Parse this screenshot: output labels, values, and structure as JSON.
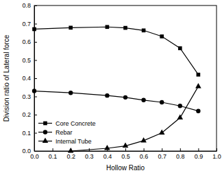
{
  "chart_data": {
    "type": "line",
    "x_label": "Hollow Ratio",
    "y_label": "Division ratio of Lateral force",
    "x": [
      0,
      0.2,
      0.4,
      0.5,
      0.6,
      0.7,
      0.8,
      0.9
    ],
    "series": [
      {
        "name": "Core Concrete",
        "color": "#000000",
        "marker": "square",
        "values": [
          0.67,
          0.678,
          0.682,
          0.677,
          0.663,
          0.63,
          0.565,
          0.42
        ]
      },
      {
        "name": "Rebar",
        "color": "#000000",
        "marker": "circle",
        "values": [
          0.33,
          0.32,
          0.305,
          0.295,
          0.28,
          0.268,
          0.248,
          0.22
        ]
      },
      {
        "name": "Internal Tube",
        "color": "#000000",
        "marker": "triangle",
        "values": [
          null,
          0.0,
          0.015,
          0.028,
          0.057,
          0.1,
          0.183,
          0.355
        ]
      }
    ],
    "xlim": [
      0,
      1.0
    ],
    "xticks": [
      {
        "value": 0,
        "label": "0.0"
      },
      0.1,
      0.2,
      0.3,
      0.4,
      0.5,
      0.6,
      0.7,
      0.8,
      0.9,
      {
        "value": 1.0,
        "label": "1.0"
      }
    ],
    "ylim": [
      0,
      0.8
    ],
    "yticks": [
      {
        "value": 0,
        "label": "0.0"
      },
      0.1,
      0.2,
      0.3,
      0.4,
      0.5,
      0.6,
      0.7,
      0.8
    ],
    "legend": "lower left",
    "grid": false
  }
}
